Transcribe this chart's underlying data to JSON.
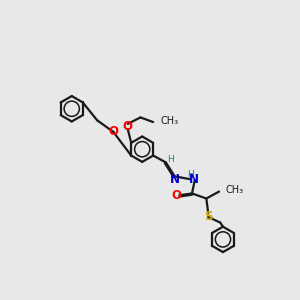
{
  "bg_color": "#e8e8e8",
  "bond_color": "#1a1a1a",
  "O_color": "#ff0000",
  "N_color": "#0000cc",
  "S_color": "#ccaa00",
  "H_color": "#008888",
  "lw": 1.6,
  "fs": 7.5,
  "r": 0.55,
  "xlim": [
    0,
    10
  ],
  "ylim": [
    0,
    10
  ]
}
